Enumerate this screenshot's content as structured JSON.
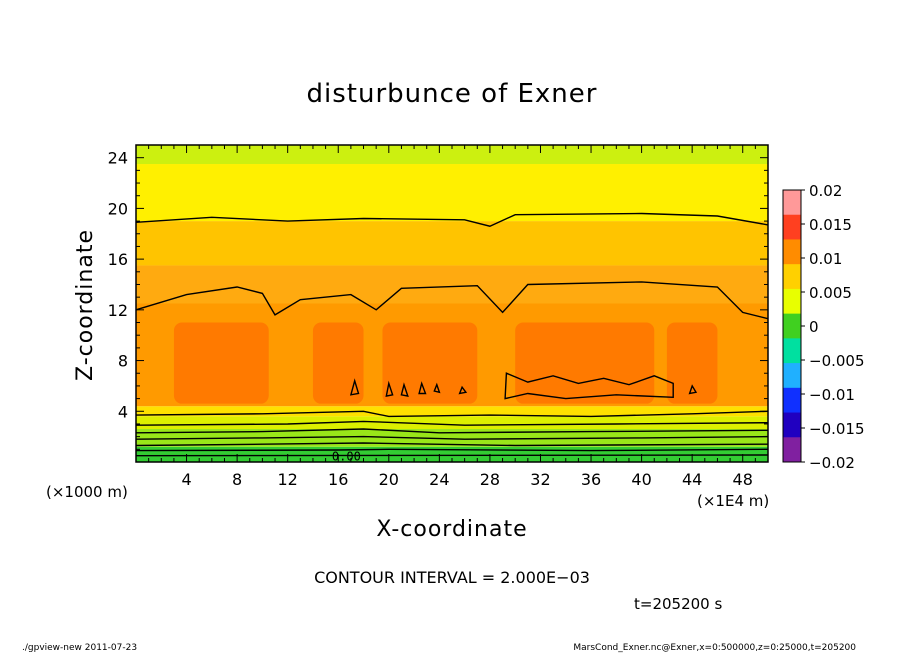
{
  "chart_data": {
    "type": "heatmap",
    "title": "disturbunce of Exner",
    "xlabel": "X-coordinate",
    "ylabel": "Z-coordinate",
    "x_unit_left": "(×1000 m)",
    "x_unit_right": "(×1E4 m)",
    "xlim": [
      0,
      50
    ],
    "ylim": [
      0,
      25
    ],
    "x_ticks": [
      "4",
      "8",
      "12",
      "16",
      "20",
      "24",
      "28",
      "32",
      "36",
      "40",
      "44",
      "48"
    ],
    "x_tick_values": [
      4,
      8,
      12,
      16,
      20,
      24,
      28,
      32,
      36,
      40,
      44,
      48
    ],
    "y_ticks": [
      "4",
      "8",
      "12",
      "16",
      "20",
      "24"
    ],
    "y_tick_values": [
      4,
      8,
      12,
      16,
      20,
      24
    ],
    "colorbar": {
      "labels": [
        "0.02",
        "0.015",
        "0.01",
        "0.005",
        "0",
        "−0.005",
        "−0.01",
        "−0.015",
        "−0.02"
      ],
      "values": [
        0.02,
        0.015,
        0.01,
        0.005,
        0,
        -0.005,
        -0.01,
        -0.015,
        -0.02
      ],
      "colors": [
        "#ff9999",
        "#ff4020",
        "#ff8c00",
        "#ffd000",
        "#e8ff00",
        "#40d020",
        "#00e0a0",
        "#20b0ff",
        "#1030ff",
        "#2000c0",
        "#8020a0"
      ]
    },
    "bands": [
      {
        "z_from": 0.0,
        "z_to": 1.2,
        "value": -0.004,
        "color": "#33cc33"
      },
      {
        "z_from": 1.2,
        "z_to": 2.6,
        "value": 0.002,
        "color": "#99e619"
      },
      {
        "z_from": 2.6,
        "z_to": 3.6,
        "value": 0.005,
        "color": "#ddf000"
      },
      {
        "z_from": 3.6,
        "z_to": 4.4,
        "value": 0.007,
        "color": "#ffe000"
      },
      {
        "z_from": 4.4,
        "z_to": 12.5,
        "value": 0.011,
        "color": "#ff9a00"
      },
      {
        "z_from": 12.5,
        "z_to": 15.5,
        "value": 0.009,
        "color": "#ffaa10"
      },
      {
        "z_from": 15.5,
        "z_to": 19.0,
        "value": 0.008,
        "color": "#ffc400"
      },
      {
        "z_from": 19.0,
        "z_to": 23.5,
        "value": 0.006,
        "color": "#fff000"
      },
      {
        "z_from": 23.5,
        "z_to": 25.0,
        "value": 0.004,
        "color": "#ccf010"
      }
    ],
    "max_region": {
      "z_from": 4.6,
      "z_to": 11.0,
      "value": 0.013,
      "color": "#ff7a00"
    },
    "contour_label": "0.00",
    "contour_lines": [
      {
        "name": "z19",
        "points": [
          [
            0,
            18.9
          ],
          [
            6,
            19.3
          ],
          [
            12,
            19.0
          ],
          [
            18,
            19.2
          ],
          [
            26,
            19.1
          ],
          [
            28,
            18.6
          ],
          [
            30,
            19.5
          ],
          [
            40,
            19.6
          ],
          [
            46,
            19.4
          ],
          [
            50,
            18.7
          ]
        ]
      },
      {
        "name": "z13",
        "points": [
          [
            0,
            12.0
          ],
          [
            4,
            13.2
          ],
          [
            8,
            13.8
          ],
          [
            10,
            13.3
          ],
          [
            11,
            11.6
          ],
          [
            13,
            12.8
          ],
          [
            17,
            13.2
          ],
          [
            19,
            12.0
          ],
          [
            21,
            13.7
          ],
          [
            27,
            13.9
          ],
          [
            29,
            11.8
          ],
          [
            31,
            14.0
          ],
          [
            40,
            14.2
          ],
          [
            46,
            13.8
          ],
          [
            48,
            11.8
          ],
          [
            50,
            11.3
          ]
        ]
      },
      {
        "name": "z4",
        "points": [
          [
            0,
            3.7
          ],
          [
            10,
            3.8
          ],
          [
            18,
            4.0
          ],
          [
            20,
            3.6
          ],
          [
            28,
            3.7
          ],
          [
            36,
            3.6
          ],
          [
            44,
            3.8
          ],
          [
            50,
            4.0
          ]
        ]
      },
      {
        "name": "z3",
        "points": [
          [
            0,
            2.9
          ],
          [
            12,
            3.0
          ],
          [
            18,
            3.2
          ],
          [
            26,
            2.9
          ],
          [
            38,
            3.0
          ],
          [
            50,
            3.1
          ]
        ]
      },
      {
        "name": "z2a",
        "points": [
          [
            0,
            2.3
          ],
          [
            10,
            2.4
          ],
          [
            18,
            2.6
          ],
          [
            24,
            2.3
          ],
          [
            36,
            2.4
          ],
          [
            50,
            2.5
          ]
        ]
      },
      {
        "name": "z2b",
        "points": [
          [
            0,
            1.8
          ],
          [
            10,
            1.9
          ],
          [
            18,
            2.0
          ],
          [
            26,
            1.8
          ],
          [
            40,
            1.9
          ],
          [
            50,
            2.0
          ]
        ]
      },
      {
        "name": "z1a",
        "points": [
          [
            0,
            1.3
          ],
          [
            10,
            1.4
          ],
          [
            18,
            1.5
          ],
          [
            30,
            1.3
          ],
          [
            50,
            1.4
          ]
        ]
      },
      {
        "name": "z1b",
        "points": [
          [
            0,
            0.9
          ],
          [
            16,
            0.95
          ],
          [
            20,
            1.0
          ],
          [
            36,
            0.9
          ],
          [
            50,
            1.0
          ]
        ]
      },
      {
        "name": "z0",
        "points": [
          [
            0,
            0.5
          ],
          [
            50,
            0.55
          ]
        ]
      }
    ],
    "closed_contours": [
      {
        "name": "blob-1",
        "points": [
          [
            29.2,
            5.0
          ],
          [
            29.3,
            7.0
          ],
          [
            31,
            6.3
          ],
          [
            33,
            6.8
          ],
          [
            35,
            6.2
          ],
          [
            37,
            6.6
          ],
          [
            39,
            6.1
          ],
          [
            41,
            6.8
          ],
          [
            42.5,
            6.2
          ],
          [
            42.5,
            5.1
          ],
          [
            38,
            5.3
          ],
          [
            34,
            5.0
          ],
          [
            31,
            5.4
          ]
        ]
      },
      {
        "name": "blob-2",
        "points": [
          [
            17,
            5.3
          ],
          [
            17.3,
            6.4
          ],
          [
            17.6,
            5.4
          ]
        ]
      },
      {
        "name": "blob-3",
        "points": [
          [
            19.8,
            5.2
          ],
          [
            20.0,
            6.2
          ],
          [
            20.3,
            5.3
          ]
        ]
      },
      {
        "name": "blob-4",
        "points": [
          [
            21.0,
            5.3
          ],
          [
            21.2,
            6.1
          ],
          [
            21.5,
            5.2
          ]
        ]
      },
      {
        "name": "blob-5",
        "points": [
          [
            22.4,
            5.4
          ],
          [
            22.6,
            6.2
          ],
          [
            22.9,
            5.4
          ]
        ]
      },
      {
        "name": "blob-6",
        "points": [
          [
            23.6,
            5.6
          ],
          [
            23.8,
            6.1
          ],
          [
            24.0,
            5.5
          ]
        ]
      },
      {
        "name": "blob-7",
        "points": [
          [
            25.6,
            5.4
          ],
          [
            25.8,
            5.9
          ],
          [
            26.1,
            5.5
          ]
        ]
      },
      {
        "name": "blob-8",
        "points": [
          [
            43.8,
            5.4
          ],
          [
            44.0,
            6.0
          ],
          [
            44.3,
            5.5
          ]
        ]
      }
    ]
  },
  "annotations": {
    "contour_interval": "CONTOUR INTERVAL = 2.000E−03",
    "time": "t=205200 s",
    "footer_left": "./gpview-new   2011-07-23",
    "footer_right": "MarsCond_Exner.nc@Exner,x=0:500000,z=0:25000,t=205200"
  }
}
